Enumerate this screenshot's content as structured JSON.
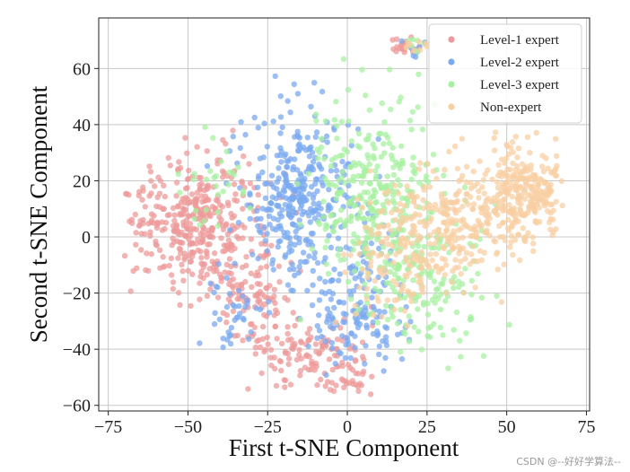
{
  "chart_data": {
    "type": "scatter",
    "title": "",
    "xlabel": "First t-SNE Component",
    "ylabel": "Second t-SNE Component",
    "xlim": [
      -78,
      76
    ],
    "ylim": [
      -62,
      78
    ],
    "xticks": [
      -75,
      -50,
      -25,
      0,
      25,
      50,
      75
    ],
    "yticks": [
      -60,
      -40,
      -20,
      0,
      20,
      40,
      60
    ],
    "xtick_labels": [
      "−75",
      "−50",
      "−25",
      "0",
      "25",
      "50",
      "75"
    ],
    "ytick_labels": [
      "−60",
      "−40",
      "−20",
      "0",
      "20",
      "40",
      "60"
    ],
    "grid": true,
    "legend_position": "top-right",
    "series": [
      {
        "name": "Level-1 expert",
        "color": "#ee9a9a",
        "clusters": [
          {
            "cx": -48,
            "cy": 5,
            "sx": 11,
            "sy": 11,
            "n": 380
          },
          {
            "cx": -30,
            "cy": -20,
            "sx": 7,
            "sy": 10,
            "n": 110
          },
          {
            "cx": -12,
            "cy": -42,
            "sx": 8,
            "sy": 6,
            "n": 110
          },
          {
            "cx": 2,
            "cy": -51,
            "sx": 4,
            "sy": 3,
            "n": 25
          },
          {
            "cx": 18,
            "cy": 68,
            "sx": 2.5,
            "sy": 2,
            "n": 20
          }
        ]
      },
      {
        "name": "Level-2 expert",
        "color": "#7aaaf0",
        "clusters": [
          {
            "cx": -15,
            "cy": 15,
            "sx": 9,
            "sy": 14,
            "n": 340
          },
          {
            "cx": 2,
            "cy": -25,
            "sx": 9,
            "sy": 12,
            "n": 170
          },
          {
            "cx": -35,
            "cy": -25,
            "sx": 5,
            "sy": 8,
            "n": 40
          },
          {
            "cx": 20,
            "cy": 66,
            "sx": 2.5,
            "sy": 2,
            "n": 8
          }
        ]
      },
      {
        "name": "Level-3 expert",
        "color": "#a7f0a0",
        "clusters": [
          {
            "cx": 8,
            "cy": 15,
            "sx": 10,
            "sy": 16,
            "n": 320
          },
          {
            "cx": 25,
            "cy": -15,
            "sx": 9,
            "sy": 12,
            "n": 150
          },
          {
            "cx": -40,
            "cy": 15,
            "sx": 6,
            "sy": 8,
            "n": 30
          },
          {
            "cx": 20,
            "cy": 68,
            "sx": 2.5,
            "sy": 2,
            "n": 8
          }
        ]
      },
      {
        "name": "Non-expert",
        "color": "#f8cfa3",
        "clusters": [
          {
            "cx": 55,
            "cy": 15,
            "sx": 7,
            "sy": 8,
            "n": 280
          },
          {
            "cx": 30,
            "cy": 5,
            "sx": 11,
            "sy": 11,
            "n": 280
          },
          {
            "cx": 15,
            "cy": -10,
            "sx": 8,
            "sy": 10,
            "n": 80
          },
          {
            "cx": 20,
            "cy": 68,
            "sx": 2.5,
            "sy": 2,
            "n": 8
          }
        ]
      }
    ]
  },
  "watermark": "CSDN @--好好学算法--"
}
